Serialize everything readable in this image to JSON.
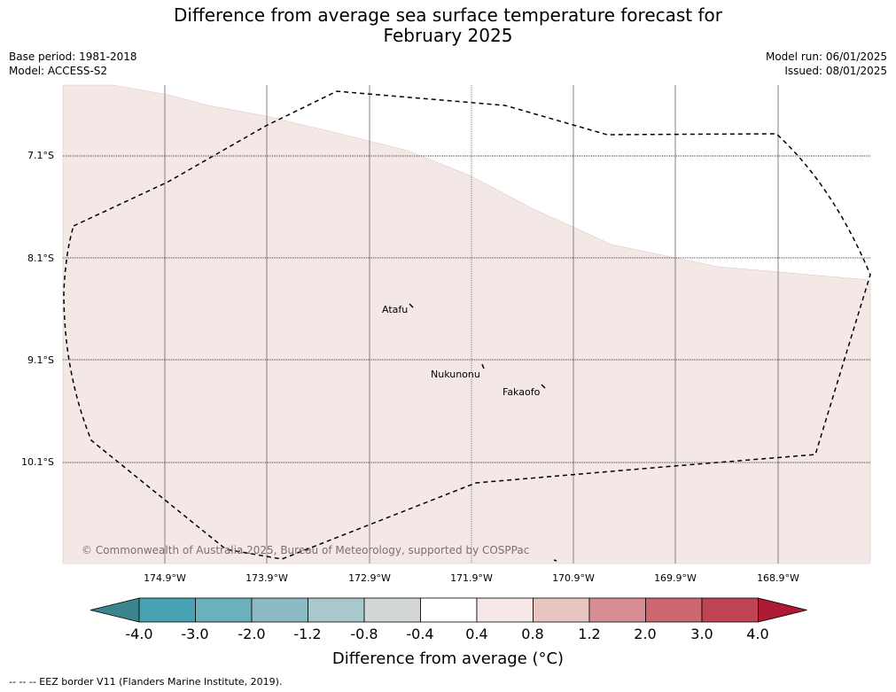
{
  "title": {
    "line1": "Difference from average sea surface temperature forecast for",
    "line2": "February 2025"
  },
  "meta": {
    "base_period": "Base period: 1981-2018",
    "model": "Model: ACCESS-S2",
    "model_run": "Model run: 06/01/2025",
    "issued": "Issued: 08/01/2025"
  },
  "map": {
    "latitude_labels": [
      "7.1°S",
      "8.1°S",
      "9.1°S",
      "10.1°S"
    ],
    "longitude_labels": [
      "174.9°W",
      "173.9°W",
      "172.9°W",
      "171.9°W",
      "170.9°W",
      "169.9°W",
      "168.9°W"
    ],
    "places": [
      "Atafu",
      "Nukunonu",
      "Fakaofo"
    ],
    "copyright": "© Commonwealth of Australia 2025, Bureau of Meteorology, supported by COSPPac",
    "fill_color": "#f4e8e7",
    "fill_category": "0.4 to 0.8"
  },
  "colorbar": {
    "ticks": [
      "-4.0",
      "-3.0",
      "-2.0",
      "-1.2",
      "-0.8",
      "-0.4",
      "0.4",
      "0.8",
      "1.2",
      "2.0",
      "3.0",
      "4.0"
    ],
    "colors": [
      "#3b8590",
      "#47a3b3",
      "#6cb0bd",
      "#8bbac3",
      "#a8c8cc",
      "#d3d7d8",
      "#ffffff",
      "#f6e8e7",
      "#e9c5c1",
      "#d98e95",
      "#cd6870",
      "#bf4353",
      "#ae1a35"
    ],
    "label": "Difference from average (°C)"
  },
  "footer": "--  --  -- EEZ border V11 (Flanders Marine Institute, 2019)."
}
